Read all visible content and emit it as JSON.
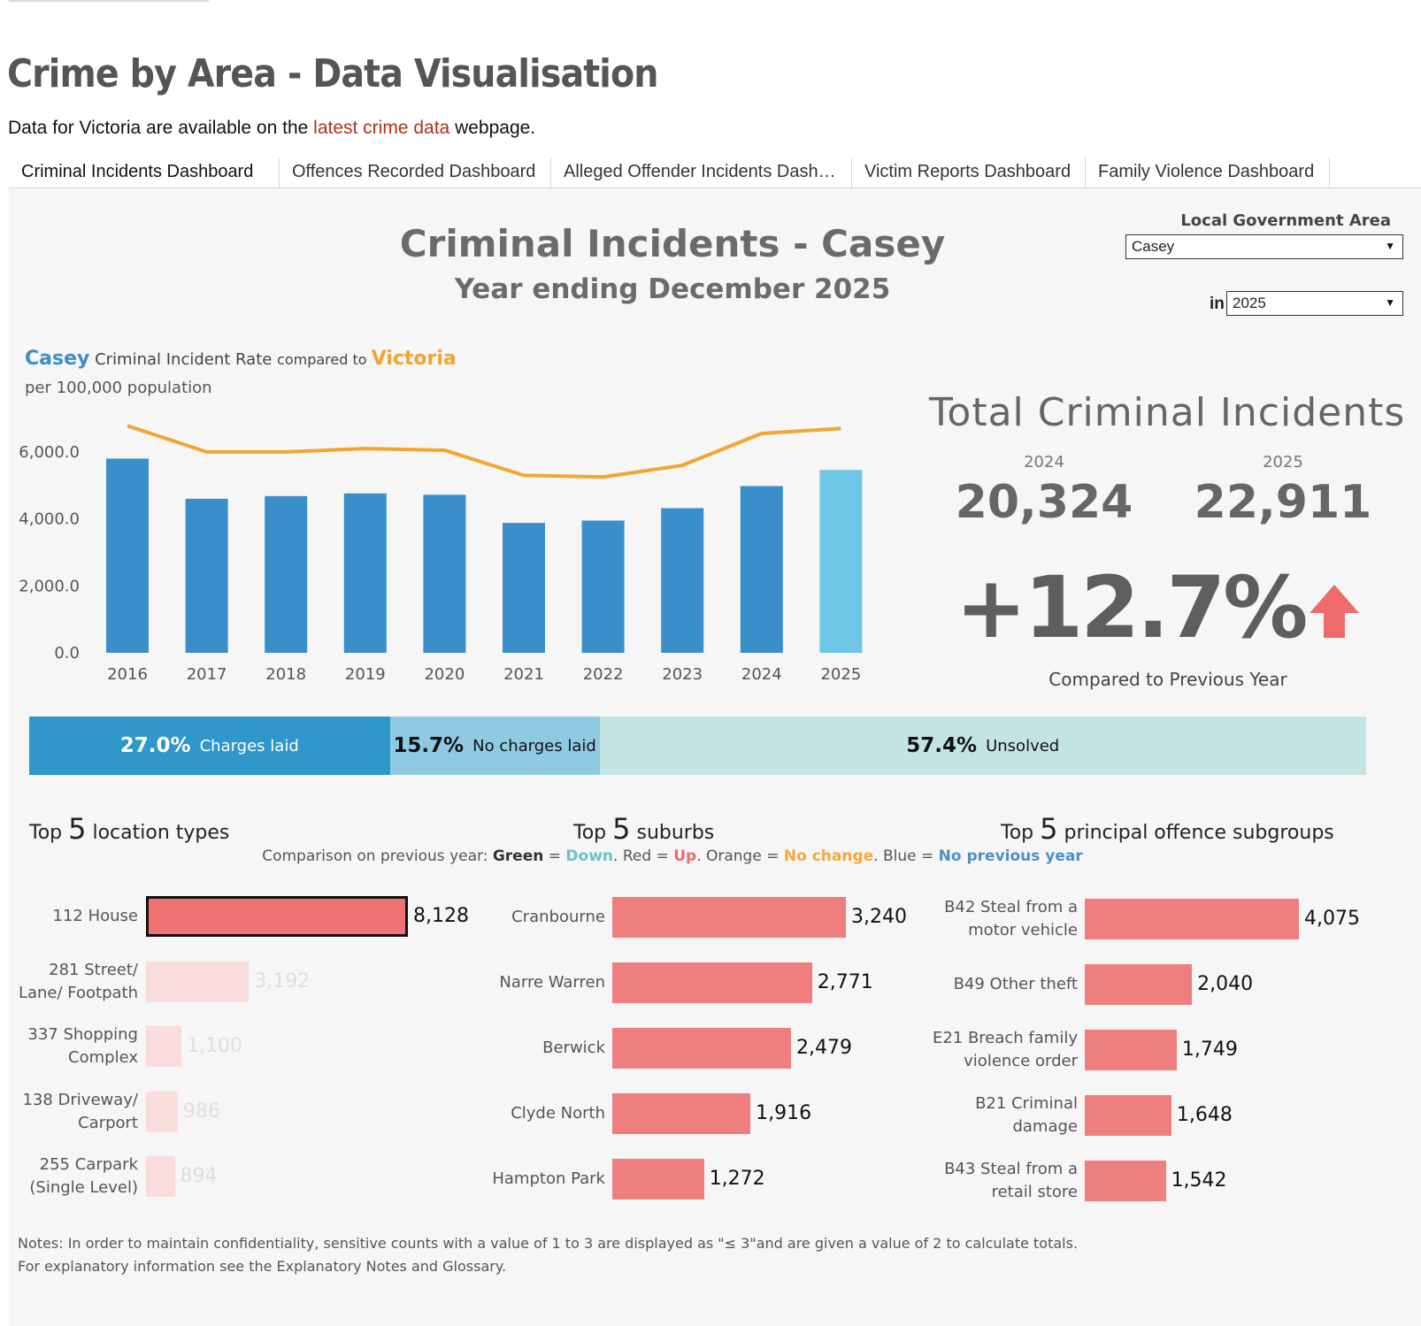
{
  "page": {
    "title": "Crime by Area - Data Visualisation",
    "intro_before": "Data for Victoria are available on the ",
    "intro_link": "latest crime data",
    "intro_after": " webpage."
  },
  "tabs": [
    {
      "label": "Criminal Incidents Dashboard",
      "active": true
    },
    {
      "label": "Offences Recorded Dashboard"
    },
    {
      "label": "Alleged Offender Incidents Dash…"
    },
    {
      "label": "Victim Reports Dashboard"
    },
    {
      "label": "Family Violence Dashboard"
    }
  ],
  "dashboard": {
    "title": "Criminal Incidents - Casey",
    "subtitle": "Year ending December 2025",
    "lga_label": "Local Government Area",
    "lga_value": "Casey",
    "in_label": "in",
    "year_value": "2025"
  },
  "chart_head": {
    "area": "Casey",
    "middle": " Criminal Incident Rate ",
    "compared": "compared to ",
    "state": "Victoria",
    "sub": "per 100,000 population"
  },
  "chart_data": {
    "type": "bar",
    "title": "Casey Criminal Incident Rate compared to Victoria",
    "subtitle": "per 100,000 population",
    "categories": [
      "2016",
      "2017",
      "2018",
      "2019",
      "2020",
      "2021",
      "2022",
      "2023",
      "2024",
      "2025"
    ],
    "series": [
      {
        "name": "Casey",
        "type": "bar",
        "color": "#3a8fcb",
        "highlight_color": "#6ec6e6",
        "values": [
          5800,
          4600,
          4680,
          4760,
          4720,
          3880,
          3950,
          4320,
          4980,
          5460
        ]
      },
      {
        "name": "Victoria",
        "type": "line",
        "color": "#f2a531",
        "values": [
          6780,
          6000,
          6000,
          6100,
          6050,
          5300,
          5250,
          5600,
          6550,
          6700
        ]
      }
    ],
    "yticks": [
      "0.0",
      "2,000.0",
      "4,000.0",
      "6,000.0"
    ],
    "ylim": [
      0,
      7000
    ]
  },
  "totals": {
    "title": "Total Criminal Incidents",
    "year_prev": "2024",
    "value_prev": "20,324",
    "year_curr": "2025",
    "value_curr": "22,911",
    "change": "+12.7%",
    "change_label": "Compared to Previous Year",
    "arrow_color": "#ef6a6a"
  },
  "outcomes": [
    {
      "pct": "27.0%",
      "label": "Charges laid",
      "share": 27.0,
      "color": "#2f97c9",
      "text_color": "#ffffff"
    },
    {
      "pct": "15.7%",
      "label": "No charges laid",
      "share": 15.7,
      "color": "#8ecbe3",
      "text_color": "#111111"
    },
    {
      "pct": "57.4%",
      "label": "Unsolved",
      "share": 57.4,
      "color": "#c3e4e3",
      "text_color": "#111111"
    }
  ],
  "sections": {
    "top": "Top ",
    "five": "5",
    "locations": " location types",
    "suburbs": " suburbs",
    "offences": " principal offence subgroups"
  },
  "legend": {
    "lead": "Comparison on previous year: ",
    "green": "Green",
    "down": "Down",
    "red": "Red",
    "up": "Up",
    "orange": "Orange",
    "nochange": "No change",
    "blue": "Blue",
    "noprev": "No previous year",
    "eq": " = ",
    "sep": ". ",
    "colors": {
      "down": "#6cc3c7",
      "up": "#ef6a6a",
      "nochange": "#f4a938",
      "noprev": "#4f8fc6"
    }
  },
  "locations": [
    {
      "label": "112 House",
      "value": 8128,
      "display": "8,128",
      "selected": true
    },
    {
      "label": "281 Street/ Lane/ Footpath",
      "value": 3192,
      "display": "3,192"
    },
    {
      "label": "337 Shopping Complex",
      "value": 1100,
      "display": "1,100"
    },
    {
      "label": "138 Driveway/ Carport",
      "value": 986,
      "display": "986"
    },
    {
      "label": "255 Carpark (Single Level)",
      "value": 894,
      "display": "894"
    }
  ],
  "suburbs": [
    {
      "label": "Cranbourne",
      "value": 3240,
      "display": "3,240"
    },
    {
      "label": "Narre Warren",
      "value": 2771,
      "display": "2,771"
    },
    {
      "label": "Berwick",
      "value": 2479,
      "display": "2,479"
    },
    {
      "label": "Clyde North",
      "value": 1916,
      "display": "1,916"
    },
    {
      "label": "Hampton Park",
      "value": 1272,
      "display": "1,272"
    }
  ],
  "offences": [
    {
      "label": "B42 Steal from a motor vehicle",
      "value": 4075,
      "display": "4,075"
    },
    {
      "label": "B49 Other theft",
      "value": 2040,
      "display": "2,040"
    },
    {
      "label": "E21 Breach family violence order",
      "value": 1749,
      "display": "1,749"
    },
    {
      "label": "B21 Criminal damage",
      "value": 1648,
      "display": "1,648"
    },
    {
      "label": "B43 Steal from a retail store",
      "value": 1542,
      "display": "1,542"
    }
  ],
  "notes": {
    "label": "Notes",
    "line1": ":  In order to maintain confidentiality, sensitive counts with a value of 1 to 3  are displayed as \"≤ 3\"and are given a value of 2 to calculate totals.",
    "line2": "For explanatory information see the Explanatory Notes and Glossary."
  }
}
